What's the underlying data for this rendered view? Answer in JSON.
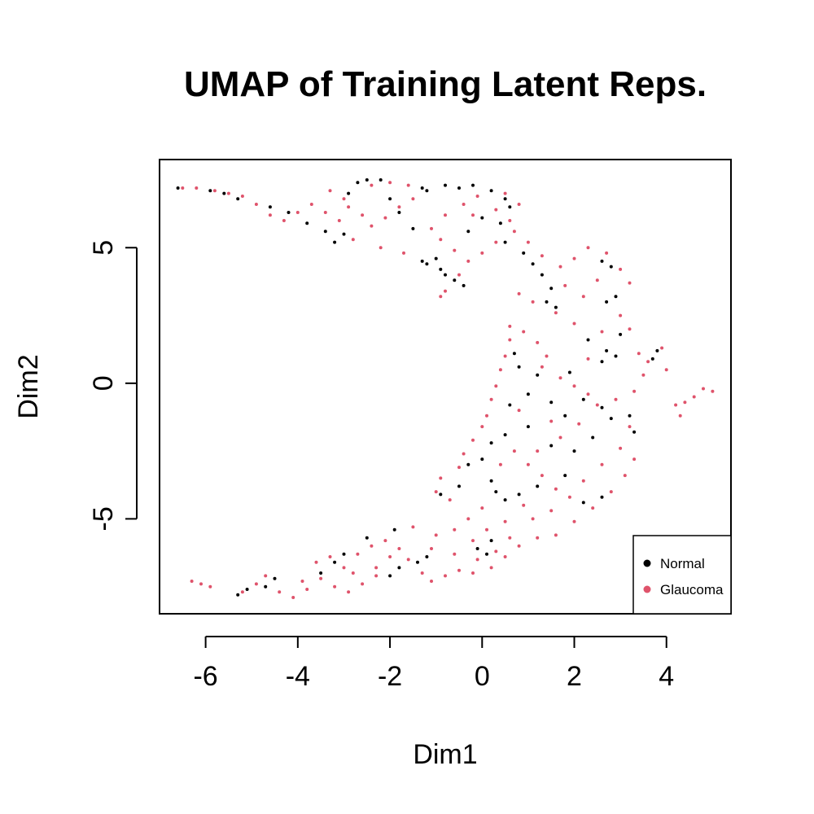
{
  "chart_data": {
    "type": "scatter",
    "title": "UMAP of Training Latent Reps.",
    "xlabel": "Dim1",
    "ylabel": "Dim2",
    "xlim": [
      -7.0,
      5.4
    ],
    "ylim": [
      -8.5,
      8.25
    ],
    "xticks": [
      -6,
      -4,
      -2,
      0,
      2,
      4
    ],
    "yticks": [
      -5,
      0,
      5
    ],
    "xtick_labels": [
      "-6",
      "-4",
      "-2",
      "0",
      "2",
      "4"
    ],
    "ytick_labels": [
      "-5",
      "0",
      "5"
    ],
    "grid": false,
    "legend": {
      "position": "bottom-right",
      "entries": [
        {
          "label": "Normal",
          "color": "#000000"
        },
        {
          "label": "Glaucoma",
          "color": "#DF536B"
        }
      ]
    },
    "series": [
      {
        "name": "Normal",
        "color": "#000000",
        "points": [
          [
            -6.6,
            7.2
          ],
          [
            -5.9,
            7.1
          ],
          [
            -5.6,
            7.0
          ],
          [
            -5.3,
            6.8
          ],
          [
            -4.6,
            6.5
          ],
          [
            -4.2,
            6.3
          ],
          [
            -3.8,
            5.9
          ],
          [
            -3.4,
            5.6
          ],
          [
            -3.2,
            5.2
          ],
          [
            -3.0,
            5.5
          ],
          [
            -2.9,
            7.0
          ],
          [
            -2.7,
            7.4
          ],
          [
            -2.5,
            7.5
          ],
          [
            -2.2,
            7.5
          ],
          [
            -2.0,
            6.8
          ],
          [
            -1.8,
            6.3
          ],
          [
            -1.5,
            5.7
          ],
          [
            -1.3,
            4.5
          ],
          [
            -1.2,
            4.4
          ],
          [
            -1.0,
            4.6
          ],
          [
            -0.9,
            4.2
          ],
          [
            -0.8,
            4.0
          ],
          [
            -0.6,
            3.8
          ],
          [
            -0.4,
            3.6
          ],
          [
            -1.3,
            7.2
          ],
          [
            -1.2,
            7.1
          ],
          [
            -0.8,
            7.3
          ],
          [
            -0.5,
            7.2
          ],
          [
            -0.2,
            7.3
          ],
          [
            0.2,
            7.1
          ],
          [
            0.5,
            6.8
          ],
          [
            0.6,
            6.5
          ],
          [
            0.4,
            5.9
          ],
          [
            0.0,
            6.1
          ],
          [
            -0.3,
            5.6
          ],
          [
            0.5,
            5.2
          ],
          [
            0.9,
            4.8
          ],
          [
            1.1,
            4.4
          ],
          [
            1.3,
            4.0
          ],
          [
            1.5,
            3.5
          ],
          [
            1.4,
            3.0
          ],
          [
            1.6,
            2.8
          ],
          [
            2.6,
            4.5
          ],
          [
            2.8,
            4.3
          ],
          [
            2.9,
            3.2
          ],
          [
            2.7,
            3.0
          ],
          [
            3.0,
            1.8
          ],
          [
            2.7,
            1.2
          ],
          [
            2.9,
            1.0
          ],
          [
            2.6,
            0.8
          ],
          [
            3.8,
            1.2
          ],
          [
            3.7,
            0.9
          ],
          [
            0.7,
            1.1
          ],
          [
            0.8,
            0.6
          ],
          [
            1.2,
            0.3
          ],
          [
            1.0,
            -0.4
          ],
          [
            1.5,
            -0.7
          ],
          [
            1.8,
            -1.2
          ],
          [
            2.2,
            -0.6
          ],
          [
            2.6,
            -0.9
          ],
          [
            2.8,
            -1.3
          ],
          [
            3.2,
            -1.2
          ],
          [
            3.3,
            -1.8
          ],
          [
            2.4,
            -2.0
          ],
          [
            2.0,
            -2.5
          ],
          [
            1.5,
            -2.3
          ],
          [
            1.0,
            -1.6
          ],
          [
            0.5,
            -1.9
          ],
          [
            0.2,
            -2.2
          ],
          [
            0.0,
            -2.8
          ],
          [
            0.2,
            -3.6
          ],
          [
            0.3,
            -4.0
          ],
          [
            0.5,
            -4.3
          ],
          [
            0.8,
            -4.1
          ],
          [
            1.2,
            -3.8
          ],
          [
            1.8,
            -3.4
          ],
          [
            2.2,
            -4.4
          ],
          [
            2.6,
            -4.2
          ],
          [
            -0.5,
            -3.8
          ],
          [
            -0.9,
            -4.1
          ],
          [
            0.2,
            -5.8
          ],
          [
            0.1,
            -6.3
          ],
          [
            -0.1,
            -6.1
          ],
          [
            -1.2,
            -6.4
          ],
          [
            -1.4,
            -6.6
          ],
          [
            -1.8,
            -6.8
          ],
          [
            -1.9,
            -5.4
          ],
          [
            -2.5,
            -5.7
          ],
          [
            -3.0,
            -6.3
          ],
          [
            -3.2,
            -6.6
          ],
          [
            -3.5,
            -7.0
          ],
          [
            -4.5,
            -7.2
          ],
          [
            -4.7,
            -7.5
          ],
          [
            -5.1,
            -7.6
          ],
          [
            -5.3,
            -7.8
          ],
          [
            -2.0,
            -7.1
          ],
          [
            -0.3,
            -3.0
          ],
          [
            0.6,
            -0.8
          ],
          [
            1.9,
            0.4
          ],
          [
            2.3,
            1.6
          ]
        ]
      },
      {
        "name": "Glaucoma",
        "color": "#DF536B",
        "points": [
          [
            -6.3,
            -7.3
          ],
          [
            -6.1,
            -7.4
          ],
          [
            -5.9,
            -7.5
          ],
          [
            -5.2,
            -7.7
          ],
          [
            -4.9,
            -7.4
          ],
          [
            -4.7,
            -7.1
          ],
          [
            -4.4,
            -7.7
          ],
          [
            -4.1,
            -7.9
          ],
          [
            -3.8,
            -7.6
          ],
          [
            -3.5,
            -7.2
          ],
          [
            -3.2,
            -7.5
          ],
          [
            -2.9,
            -7.7
          ],
          [
            -2.6,
            -7.4
          ],
          [
            -2.3,
            -7.1
          ],
          [
            -3.6,
            -6.6
          ],
          [
            -3.3,
            -6.4
          ],
          [
            -3.0,
            -6.8
          ],
          [
            -2.7,
            -6.3
          ],
          [
            -2.4,
            -6.0
          ],
          [
            -2.1,
            -5.8
          ],
          [
            -1.8,
            -6.1
          ],
          [
            -1.6,
            -6.5
          ],
          [
            -1.3,
            -7.0
          ],
          [
            -1.1,
            -7.3
          ],
          [
            -0.8,
            -7.1
          ],
          [
            -0.5,
            -6.9
          ],
          [
            -0.2,
            -7.0
          ],
          [
            0.2,
            -6.8
          ],
          [
            0.5,
            -6.4
          ],
          [
            0.8,
            -6.0
          ],
          [
            1.2,
            -5.7
          ],
          [
            1.6,
            -5.6
          ],
          [
            2.0,
            -5.1
          ],
          [
            2.4,
            -4.6
          ],
          [
            2.8,
            -4.0
          ],
          [
            3.1,
            -3.4
          ],
          [
            3.3,
            -2.8
          ],
          [
            -1.5,
            -5.3
          ],
          [
            -1.0,
            -5.6
          ],
          [
            -0.6,
            -5.4
          ],
          [
            -0.3,
            -5.0
          ],
          [
            0.0,
            -4.6
          ],
          [
            -0.7,
            -4.3
          ],
          [
            -1.0,
            -4.0
          ],
          [
            -0.9,
            -3.5
          ],
          [
            -0.5,
            -3.1
          ],
          [
            -0.4,
            -2.6
          ],
          [
            -0.2,
            -2.1
          ],
          [
            0.0,
            -1.6
          ],
          [
            0.1,
            -1.2
          ],
          [
            0.2,
            -0.6
          ],
          [
            0.3,
            -0.1
          ],
          [
            0.4,
            0.5
          ],
          [
            0.5,
            1.0
          ],
          [
            0.6,
            1.6
          ],
          [
            0.6,
            2.1
          ],
          [
            0.9,
            1.9
          ],
          [
            1.2,
            1.5
          ],
          [
            1.4,
            1.0
          ],
          [
            1.3,
            0.6
          ],
          [
            1.7,
            0.2
          ],
          [
            2.0,
            -0.1
          ],
          [
            2.3,
            -0.4
          ],
          [
            2.5,
            -0.8
          ],
          [
            2.9,
            -0.6
          ],
          [
            3.3,
            -0.3
          ],
          [
            3.5,
            0.3
          ],
          [
            3.6,
            0.8
          ],
          [
            3.9,
            1.3
          ],
          [
            4.0,
            0.5
          ],
          [
            4.2,
            -0.8
          ],
          [
            4.4,
            -0.7
          ],
          [
            4.6,
            -0.5
          ],
          [
            4.8,
            -0.2
          ],
          [
            5.0,
            -0.3
          ],
          [
            4.3,
            -1.2
          ],
          [
            0.7,
            -2.5
          ],
          [
            1.0,
            -3.0
          ],
          [
            1.3,
            -3.4
          ],
          [
            1.6,
            -3.9
          ],
          [
            1.9,
            -4.2
          ],
          [
            2.2,
            -3.6
          ],
          [
            2.6,
            -3.0
          ],
          [
            3.0,
            -2.4
          ],
          [
            3.2,
            -1.6
          ],
          [
            2.1,
            -1.5
          ],
          [
            1.7,
            -2.0
          ],
          [
            1.2,
            -2.5
          ],
          [
            0.9,
            -4.5
          ],
          [
            0.5,
            -5.1
          ],
          [
            0.1,
            -5.4
          ],
          [
            -0.2,
            -5.8
          ],
          [
            0.4,
            -3.0
          ],
          [
            0.8,
            -1.0
          ],
          [
            1.5,
            -1.4
          ],
          [
            2.3,
            0.9
          ],
          [
            2.6,
            1.9
          ],
          [
            3.0,
            2.5
          ],
          [
            3.2,
            2.0
          ],
          [
            3.4,
            1.1
          ],
          [
            2.0,
            2.2
          ],
          [
            1.6,
            2.6
          ],
          [
            1.1,
            3.0
          ],
          [
            0.8,
            3.3
          ],
          [
            1.8,
            3.6
          ],
          [
            2.2,
            3.2
          ],
          [
            2.5,
            3.8
          ],
          [
            3.0,
            4.2
          ],
          [
            3.2,
            3.7
          ],
          [
            2.7,
            4.8
          ],
          [
            2.3,
            5.0
          ],
          [
            2.0,
            4.6
          ],
          [
            1.7,
            4.3
          ],
          [
            1.3,
            4.7
          ],
          [
            1.0,
            5.2
          ],
          [
            0.7,
            5.6
          ],
          [
            0.3,
            5.2
          ],
          [
            0.0,
            4.8
          ],
          [
            -0.3,
            4.5
          ],
          [
            -0.6,
            4.9
          ],
          [
            -0.9,
            5.3
          ],
          [
            -1.1,
            5.7
          ],
          [
            -0.8,
            6.2
          ],
          [
            -0.4,
            6.6
          ],
          [
            -0.1,
            6.9
          ],
          [
            0.3,
            6.4
          ],
          [
            0.6,
            6.0
          ],
          [
            0.8,
            6.6
          ],
          [
            0.5,
            7.0
          ],
          [
            -0.2,
            6.2
          ],
          [
            -1.5,
            6.8
          ],
          [
            -1.8,
            6.5
          ],
          [
            -2.1,
            6.1
          ],
          [
            -2.4,
            5.8
          ],
          [
            -2.6,
            6.2
          ],
          [
            -2.9,
            6.5
          ],
          [
            -3.1,
            6.0
          ],
          [
            -3.4,
            6.3
          ],
          [
            -3.7,
            6.6
          ],
          [
            -4.0,
            6.3
          ],
          [
            -4.3,
            6.0
          ],
          [
            -4.6,
            6.2
          ],
          [
            -4.9,
            6.6
          ],
          [
            -5.2,
            6.9
          ],
          [
            -5.5,
            7.0
          ],
          [
            -5.8,
            7.1
          ],
          [
            -6.2,
            7.2
          ],
          [
            -6.5,
            7.2
          ],
          [
            -3.3,
            7.1
          ],
          [
            -3.0,
            6.8
          ],
          [
            -2.4,
            7.3
          ],
          [
            -2.0,
            7.4
          ],
          [
            -1.6,
            7.3
          ],
          [
            -0.9,
            3.2
          ],
          [
            -0.8,
            3.4
          ],
          [
            -2.8,
            5.3
          ],
          [
            -2.2,
            5.0
          ],
          [
            -1.7,
            4.8
          ],
          [
            -0.5,
            4.0
          ],
          [
            1.5,
            -4.7
          ],
          [
            1.1,
            -5.0
          ],
          [
            0.6,
            -5.7
          ],
          [
            0.3,
            -6.2
          ],
          [
            -0.1,
            -6.5
          ],
          [
            -0.6,
            -6.3
          ],
          [
            -1.1,
            -6.1
          ],
          [
            -2.0,
            -6.4
          ],
          [
            -2.3,
            -6.8
          ],
          [
            -2.8,
            -7.0
          ],
          [
            -3.9,
            -7.3
          ]
        ]
      }
    ]
  }
}
